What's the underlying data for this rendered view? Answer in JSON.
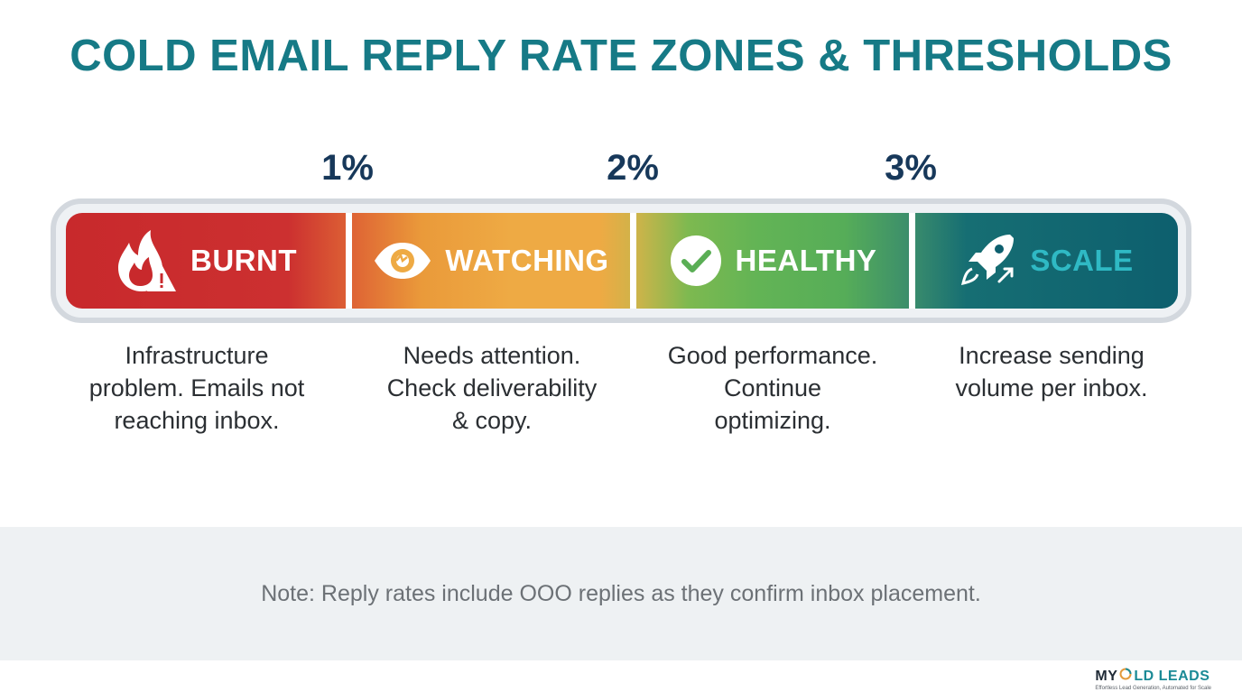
{
  "title": "COLD EMAIL REPLY RATE ZONES & THRESHOLDS",
  "thresholds": [
    "1%",
    "2%",
    "3%"
  ],
  "zones": [
    {
      "label": "BURNT",
      "icon": "fire-warning-icon",
      "color": "#c8292c",
      "description_lines": [
        "Infrastructure",
        "problem. Emails not",
        "reaching inbox."
      ]
    },
    {
      "label": "WATCHING",
      "icon": "eye-icon",
      "color": "#eeaa44",
      "description_lines": [
        "Needs attention.",
        "Check deliverability",
        "& copy."
      ]
    },
    {
      "label": "HEALTHY",
      "icon": "checkmark-circle-icon",
      "color": "#56ad58",
      "description_lines": [
        "Good performance.",
        "Continue",
        "optimizing."
      ]
    },
    {
      "label": "SCALE",
      "icon": "rocket-icon",
      "color": "#0d5f6e",
      "description_lines": [
        "Increase sending",
        "volume per inbox."
      ]
    }
  ],
  "note": "Note: Reply rates include OOO replies as they confirm inbox placement.",
  "logo": {
    "part1": "MY ",
    "part2": "LD LEADS",
    "tagline": "Effortless Lead Generation, Automated for Scale"
  }
}
